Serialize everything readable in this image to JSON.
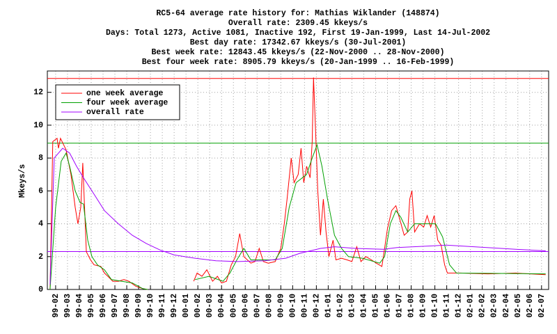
{
  "chart_data": {
    "type": "line",
    "title": [
      "RC5-64 average rate history for: Mathias Wiklander (148874)",
      "Overall rate: 2309.45 kkeys/s",
      "Days: Total 1273,  Active 1081, Inactive 192, First 19-Jan-1999, Last 14-Jul-2002",
      "Best day rate: 17342.67 kkeys/s (30-Jul-2001)",
      "Best week rate: 12843.45 kkeys/s (22-Nov-2000 .. 28-Nov-2000)",
      "Best four week rate: 8905.79 kkeys/s (20-Jan-1999 .. 16-Feb-1999)"
    ],
    "y_label": "Mkeys/s",
    "xlim": [
      -0.7,
      41.6
    ],
    "xticks": [
      {
        "value": 0,
        "label": "99-02"
      },
      {
        "value": 1,
        "label": "99-03"
      },
      {
        "value": 2,
        "label": "99-04"
      },
      {
        "value": 3,
        "label": "99-05"
      },
      {
        "value": 4,
        "label": "99-06"
      },
      {
        "value": 5,
        "label": "99-07"
      },
      {
        "value": 6,
        "label": "99-08"
      },
      {
        "value": 7,
        "label": "99-09"
      },
      {
        "value": 8,
        "label": "99-10"
      },
      {
        "value": 9,
        "label": "99-11"
      },
      {
        "value": 10,
        "label": "99-12"
      },
      {
        "value": 11,
        "label": "00-01"
      },
      {
        "value": 12,
        "label": "00-02"
      },
      {
        "value": 13,
        "label": "00-03"
      },
      {
        "value": 14,
        "label": "00-04"
      },
      {
        "value": 15,
        "label": "00-05"
      },
      {
        "value": 16,
        "label": "00-06"
      },
      {
        "value": 17,
        "label": "00-07"
      },
      {
        "value": 18,
        "label": "00-08"
      },
      {
        "value": 19,
        "label": "00-09"
      },
      {
        "value": 20,
        "label": "00-10"
      },
      {
        "value": 21,
        "label": "00-11"
      },
      {
        "value": 22,
        "label": "00-12"
      },
      {
        "value": 23,
        "label": "01-01"
      },
      {
        "value": 24,
        "label": "01-02"
      },
      {
        "value": 25,
        "label": "01-03"
      },
      {
        "value": 26,
        "label": "01-04"
      },
      {
        "value": 27,
        "label": "01-05"
      },
      {
        "value": 28,
        "label": "01-06"
      },
      {
        "value": 29,
        "label": "01-07"
      },
      {
        "value": 30,
        "label": "01-08"
      },
      {
        "value": 31,
        "label": "01-09"
      },
      {
        "value": 32,
        "label": "01-10"
      },
      {
        "value": 33,
        "label": "01-11"
      },
      {
        "value": 34,
        "label": "01-12"
      },
      {
        "value": 35,
        "label": "02-01"
      },
      {
        "value": 36,
        "label": "02-02"
      },
      {
        "value": 37,
        "label": "02-03"
      },
      {
        "value": 38,
        "label": "02-04"
      },
      {
        "value": 39,
        "label": "02-05"
      },
      {
        "value": 40,
        "label": "02-06"
      },
      {
        "value": 41,
        "label": "02-07"
      }
    ],
    "ylim": [
      0,
      13.3
    ],
    "yticks": [
      0,
      2,
      4,
      6,
      8,
      10,
      12
    ],
    "grid": true,
    "legend": "upper left",
    "reference_lines": [
      {
        "value": 12.84345,
        "color": "#ff0000"
      },
      {
        "value": 8.90579,
        "color": "#00a000"
      },
      {
        "value": 2.30945,
        "color": "#a000ff"
      }
    ],
    "series": [
      {
        "name": "one week average",
        "color": "#ff0000",
        "x": [
          -0.47,
          -0.24,
          0.12,
          0.24,
          0.41,
          0.88,
          1.29,
          1.65,
          1.88,
          2.12,
          2.29,
          2.59,
          2.94,
          3.24,
          3.82,
          4.12,
          4.41,
          4.82,
          5.29,
          5.76,
          6.18,
          6.76,
          7.35,
          7.76,
          null,
          11.65,
          11.94,
          12.35,
          12.76,
          13.24,
          13.65,
          14.0,
          14.41,
          14.82,
          15.18,
          15.53,
          15.88,
          16.47,
          16.82,
          17.18,
          17.53,
          17.94,
          18.53,
          19.0,
          19.29,
          19.53,
          19.88,
          20.12,
          20.47,
          20.71,
          20.94,
          21.18,
          21.47,
          21.65,
          21.76,
          21.94,
          22.12,
          22.35,
          22.59,
          22.82,
          23.06,
          23.41,
          23.65,
          24.12,
          24.59,
          25.0,
          25.41,
          25.76,
          26.18,
          26.65,
          27.06,
          27.53,
          27.76,
          28.0,
          28.35,
          28.71,
          29.06,
          29.41,
          29.71,
          29.88,
          30.06,
          30.29,
          30.71,
          31.06,
          31.35,
          31.65,
          31.94,
          32.24,
          32.53,
          32.82,
          33.06,
          34.12,
          36.47,
          38.82,
          40.0,
          41.35
        ],
        "values": [
          0,
          9.0,
          9.2,
          8.6,
          9.2,
          8.5,
          7.0,
          5.0,
          4.0,
          5.0,
          7.7,
          2.3,
          1.8,
          1.5,
          1.4,
          1.0,
          0.8,
          0.5,
          0.5,
          0.6,
          0.5,
          0.2,
          0.05,
          0,
          null,
          0.5,
          1.0,
          0.8,
          1.2,
          0.5,
          0.8,
          0.4,
          0.5,
          1.5,
          2.0,
          3.4,
          2.0,
          1.6,
          1.7,
          2.5,
          1.7,
          1.6,
          1.7,
          2.5,
          4.0,
          5.5,
          8.0,
          6.5,
          7.0,
          8.6,
          6.5,
          7.5,
          6.8,
          9.0,
          12.9,
          9.5,
          6.0,
          3.3,
          5.5,
          3.5,
          2.0,
          3.0,
          1.8,
          1.9,
          1.8,
          1.7,
          2.6,
          1.7,
          2.0,
          1.8,
          1.6,
          1.4,
          2.5,
          3.7,
          4.8,
          5.1,
          4.2,
          3.3,
          3.5,
          5.5,
          6.0,
          3.5,
          4.0,
          3.8,
          4.5,
          3.8,
          4.5,
          3.0,
          2.7,
          1.5,
          1.0,
          1.0,
          0.95,
          1.0,
          0.95,
          0.9
        ]
      },
      {
        "name": "four week average",
        "color": "#00a000",
        "x": [
          -0.47,
          0,
          0.47,
          0.88,
          1.18,
          1.65,
          2.06,
          2.35,
          2.71,
          3.06,
          3.53,
          4.12,
          4.71,
          5.59,
          6.47,
          7.35,
          7.76,
          null,
          11.76,
          12.94,
          14.12,
          14.71,
          15.29,
          15.88,
          16.47,
          17.65,
          18.53,
          19.12,
          19.71,
          20.29,
          21.18,
          21.65,
          22.06,
          22.47,
          22.94,
          23.53,
          24.12,
          24.71,
          25.88,
          27.35,
          27.76,
          28.24,
          28.71,
          29.12,
          29.71,
          30.29,
          31.18,
          32.06,
          32.65,
          33.24,
          33.82,
          41.35
        ],
        "values": [
          0,
          5,
          7.8,
          8.3,
          7.5,
          6.0,
          5.3,
          5.2,
          3.0,
          2.0,
          1.5,
          1.2,
          0.6,
          0.5,
          0.4,
          0.05,
          0,
          null,
          0.6,
          0.8,
          0.5,
          1.0,
          1.8,
          2.5,
          1.8,
          1.8,
          1.8,
          2.5,
          5.0,
          6.5,
          7.0,
          8.0,
          8.8,
          7.5,
          5.5,
          3.3,
          2.5,
          2.0,
          1.9,
          1.6,
          2.0,
          4.0,
          4.8,
          4.4,
          3.5,
          4.0,
          4.0,
          4.0,
          3.2,
          1.5,
          1.0,
          0.95
        ]
      },
      {
        "name": "overall rate",
        "color": "#a000ff",
        "x": [
          -0.47,
          -0.12,
          0.59,
          1.18,
          1.76,
          2.35,
          3.24,
          4.12,
          5.29,
          6.47,
          7.65,
          8.82,
          10.0,
          11.76,
          13.53,
          15.29,
          17.65,
          19.41,
          20.59,
          22.35,
          23.53,
          25.29,
          27.65,
          28.82,
          31.76,
          32.94,
          35.29,
          38.82,
          41.35
        ],
        "values": [
          0.3,
          8.0,
          8.6,
          8.3,
          7.5,
          6.8,
          5.8,
          4.8,
          4.0,
          3.3,
          2.8,
          2.4,
          2.1,
          1.9,
          1.75,
          1.7,
          1.75,
          1.9,
          2.2,
          2.5,
          2.6,
          2.5,
          2.45,
          2.55,
          2.65,
          2.7,
          2.6,
          2.45,
          2.35
        ]
      }
    ]
  }
}
